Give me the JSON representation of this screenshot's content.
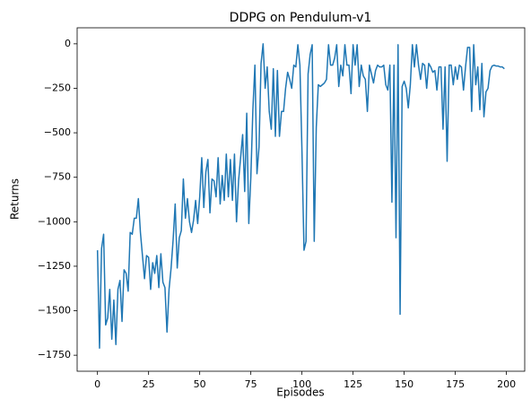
{
  "chart_data": {
    "type": "line",
    "title": "DDPG on Pendulum-v1",
    "x_label": "Episodes",
    "y_label": "Returns",
    "x": [
      0,
      1,
      2,
      3,
      4,
      5,
      6,
      7,
      8,
      9,
      10,
      11,
      12,
      13,
      14,
      15,
      16,
      17,
      18,
      19,
      20,
      21,
      22,
      23,
      24,
      25,
      26,
      27,
      28,
      29,
      30,
      31,
      32,
      33,
      34,
      35,
      36,
      37,
      38,
      39,
      40,
      41,
      42,
      43,
      44,
      45,
      46,
      47,
      48,
      49,
      50,
      51,
      52,
      53,
      54,
      55,
      56,
      57,
      58,
      59,
      60,
      61,
      62,
      63,
      64,
      65,
      66,
      67,
      68,
      69,
      70,
      71,
      72,
      73,
      74,
      75,
      76,
      77,
      78,
      79,
      80,
      81,
      82,
      83,
      84,
      85,
      86,
      87,
      88,
      89,
      90,
      91,
      92,
      93,
      94,
      95,
      96,
      97,
      98,
      99,
      100,
      101,
      102,
      103,
      104,
      105,
      106,
      107,
      108,
      109,
      110,
      111,
      112,
      113,
      114,
      115,
      116,
      117,
      118,
      119,
      120,
      121,
      122,
      123,
      124,
      125,
      126,
      127,
      128,
      129,
      130,
      131,
      132,
      133,
      134,
      135,
      136,
      137,
      138,
      139,
      140,
      141,
      142,
      143,
      144,
      145,
      146,
      147,
      148,
      149,
      150,
      151,
      152,
      153,
      154,
      155,
      156,
      157,
      158,
      159,
      160,
      161,
      162,
      163,
      164,
      165,
      166,
      167,
      168,
      169,
      170,
      171,
      172,
      173,
      174,
      175,
      176,
      177,
      178,
      179,
      180,
      181,
      182,
      183,
      184,
      185,
      186,
      187,
      188,
      189,
      190,
      191,
      192,
      193,
      194,
      195,
      196,
      197,
      198,
      199
    ],
    "series": [
      {
        "name": "Returns",
        "color": "#1f77b4",
        "values": [
          -1160,
          -1710,
          -1150,
          -1070,
          -1580,
          -1540,
          -1380,
          -1660,
          -1440,
          -1690,
          -1380,
          -1330,
          -1560,
          -1270,
          -1290,
          -1390,
          -1060,
          -1070,
          -980,
          -980,
          -870,
          -1060,
          -1190,
          -1320,
          -1190,
          -1200,
          -1380,
          -1230,
          -1290,
          -1190,
          -1370,
          -1180,
          -1340,
          -1370,
          -1620,
          -1380,
          -1260,
          -1100,
          -900,
          -1260,
          -1090,
          -1050,
          -760,
          -980,
          -870,
          -1000,
          -1060,
          -990,
          -880,
          -1010,
          -860,
          -640,
          -920,
          -720,
          -650,
          -950,
          -760,
          -770,
          -860,
          -640,
          -900,
          -740,
          -880,
          -620,
          -860,
          -650,
          -880,
          -620,
          -1000,
          -770,
          -640,
          -510,
          -830,
          -390,
          -1010,
          -750,
          -370,
          -120,
          -730,
          -580,
          -110,
          0,
          -250,
          -130,
          -380,
          -480,
          -140,
          -520,
          -150,
          -520,
          -380,
          -380,
          -250,
          -160,
          -200,
          -250,
          -120,
          -130,
          -5,
          -120,
          -600,
          -1160,
          -1110,
          -170,
          -60,
          -5,
          -1110,
          -470,
          -230,
          -240,
          -230,
          -220,
          -200,
          -5,
          -120,
          -120,
          -80,
          -5,
          -240,
          -120,
          -180,
          -5,
          -120,
          -120,
          -280,
          -5,
          -120,
          -5,
          -240,
          -120,
          -180,
          -200,
          -380,
          -120,
          -170,
          -220,
          -150,
          -120,
          -130,
          -130,
          -120,
          -230,
          -260,
          -120,
          -890,
          -120,
          -1090,
          -5,
          -1520,
          -240,
          -210,
          -250,
          -360,
          -230,
          -5,
          -130,
          -5,
          -120,
          -200,
          -110,
          -120,
          -250,
          -110,
          -130,
          -160,
          -150,
          -260,
          -130,
          -130,
          -480,
          -130,
          -660,
          -120,
          -120,
          -230,
          -130,
          -200,
          -120,
          -130,
          -260,
          -130,
          -20,
          -20,
          -380,
          -5,
          -230,
          -130,
          -370,
          -110,
          -410,
          -270,
          -250,
          -150,
          -125,
          -120,
          -125,
          -125,
          -130,
          -130,
          -140
        ]
      }
    ],
    "xlim": [
      -9.95,
      208.95
    ],
    "ylim": [
      -1840,
      90
    ],
    "xticks": [
      0,
      25,
      50,
      75,
      100,
      125,
      150,
      175,
      200
    ],
    "yticks": [
      {
        "value": -1750,
        "label": "−1750"
      },
      {
        "value": -1500,
        "label": "−1500"
      },
      {
        "value": -1250,
        "label": "−1250"
      },
      {
        "value": -1000,
        "label": "−1000"
      },
      {
        "value": -750,
        "label": "−750"
      },
      {
        "value": -500,
        "label": "−500"
      },
      {
        "value": -250,
        "label": "−250"
      },
      0
    ]
  }
}
